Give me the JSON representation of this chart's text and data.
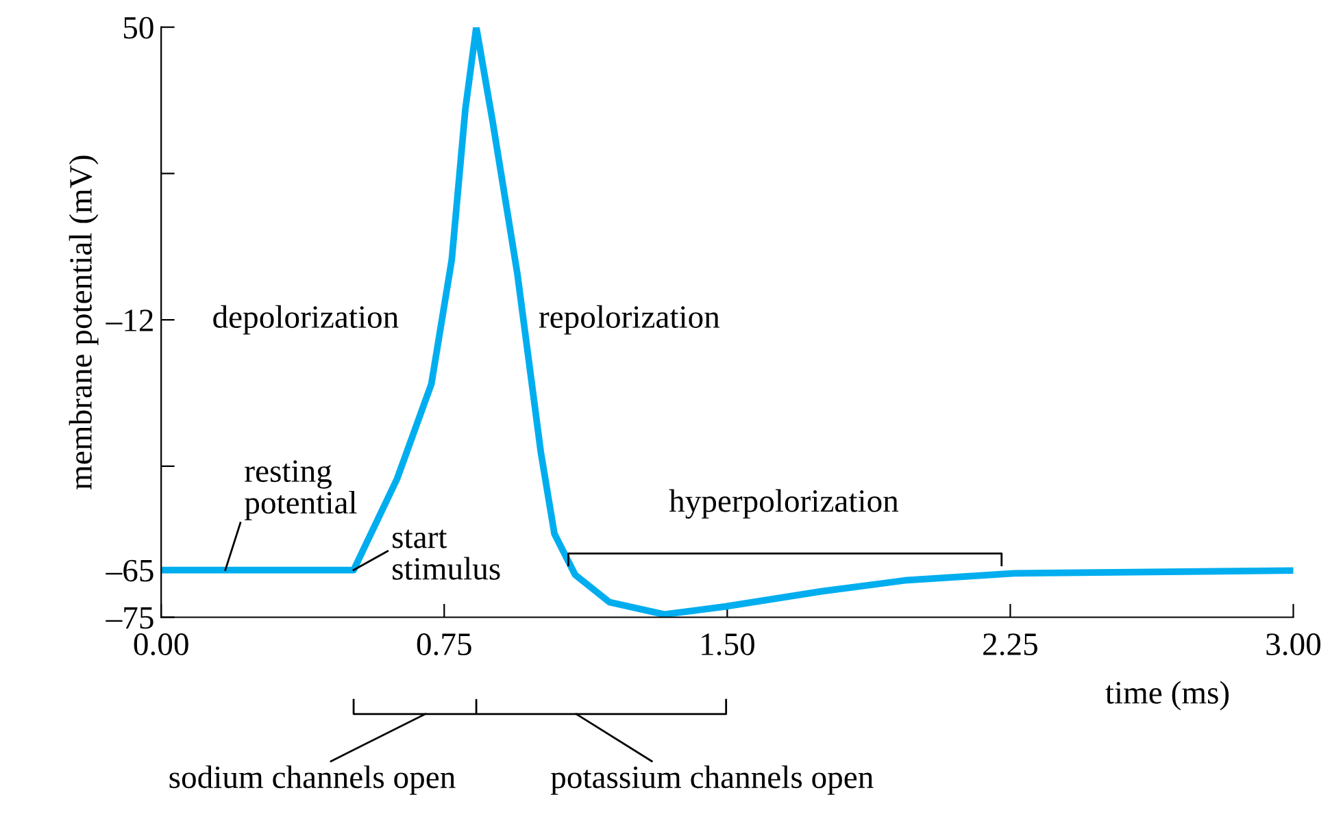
{
  "chart_data": {
    "type": "line",
    "xlabel": "time (ms)",
    "ylabel": "membrane potential (mV)",
    "x": [
      0,
      0.51,
      0.625,
      0.716,
      0.77,
      0.806,
      0.835,
      0.879,
      0.944,
      1.006,
      1.042,
      1.097,
      1.188,
      1.333,
      1.497,
      1.75,
      1.97,
      2.26,
      3.0
    ],
    "series": [
      {
        "color": "#00aeef",
        "values": [
          -65,
          -65,
          -45.7,
          -25.6,
          0.7,
          32.6,
          50,
          29.7,
          -2.3,
          -40,
          -57.3,
          -66,
          -71.8,
          -74.4,
          -72.7,
          -69.5,
          -67.2,
          -65.7,
          -65.1
        ]
      }
    ],
    "xlim": [
      0,
      3
    ],
    "ylim": [
      -75,
      50
    ],
    "xticks": [
      {
        "value": 0,
        "label": "0.00"
      },
      0.75,
      {
        "value": 1.5,
        "label": "1.50"
      },
      2.25,
      {
        "value": 3,
        "label": "3.00"
      }
    ],
    "yticks": [
      {
        "value": -75,
        "label": "–75"
      },
      {
        "value": -65,
        "label": "–65"
      },
      {
        "value": -43,
        "label": null
      },
      {
        "value": -12,
        "label": "–12"
      },
      {
        "value": 19,
        "label": null
      },
      50
    ],
    "annotations": [
      "resting\npotential",
      "start\nstimulus",
      "depolorization",
      "repolorization",
      "hyperpolorization",
      "sodium channels open",
      "potassium channels open"
    ],
    "grid": false,
    "legend": false,
    "marker": "none",
    "line_style": "solid"
  }
}
